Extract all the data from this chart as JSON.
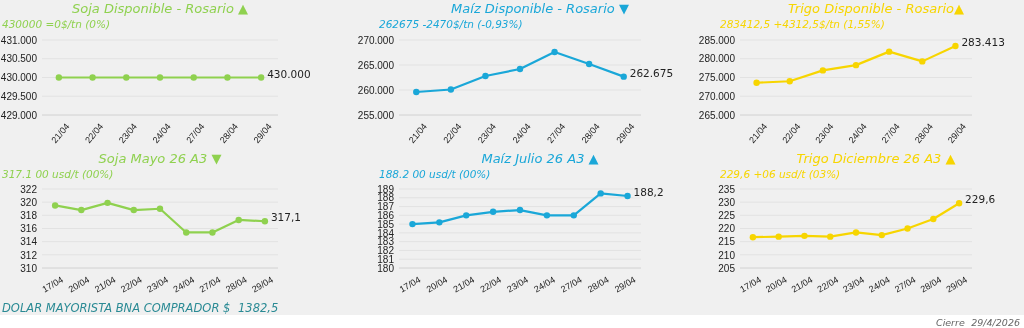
{
  "chart_data": [
    {
      "type": "line",
      "title": "Soja Disponible - Rosario ▲",
      "subtitle": "430000 =0$/tn (0%)",
      "categories": [
        "21/04",
        "22/04",
        "23/04",
        "24/04",
        "27/04",
        "28/04",
        "29/04"
      ],
      "series": [
        {
          "color": "#8fd14f",
          "values": [
            430000,
            430000,
            430000,
            430000,
            430000,
            430000,
            430000
          ],
          "value_labels": [
            null,
            null,
            null,
            null,
            null,
            null,
            "430.000"
          ]
        }
      ],
      "ylim": [
        429000,
        431000
      ],
      "yticks": [
        {
          "value": 429000,
          "label": "429.000"
        },
        {
          "value": 429500,
          "label": "429.500"
        },
        {
          "value": 430000,
          "label": "430.000"
        },
        {
          "value": 430500,
          "label": "430.500"
        },
        {
          "value": 431000,
          "label": "431.000"
        }
      ],
      "grid": "y",
      "marker": "circle"
    },
    {
      "type": "line",
      "title": "Maíz Disponible - Rosario ▼",
      "subtitle": "262675 -2470$/tn (-0,93%)",
      "categories": [
        "21/04",
        "22/04",
        "23/04",
        "24/04",
        "27/04",
        "28/04",
        "29/04"
      ],
      "series": [
        {
          "color": "#1aa7d8",
          "values": [
            259600,
            260100,
            262800,
            264200,
            267600,
            265200,
            262675
          ],
          "value_labels": [
            null,
            null,
            null,
            null,
            null,
            null,
            "262.675"
          ]
        }
      ],
      "ylim": [
        255000,
        270000
      ],
      "yticks": [
        {
          "value": 255000,
          "label": "255.000"
        },
        {
          "value": 260000,
          "label": "260.000"
        },
        {
          "value": 265000,
          "label": "265.000"
        },
        {
          "value": 270000,
          "label": "270.000"
        }
      ],
      "grid": "y",
      "marker": "circle"
    },
    {
      "type": "line",
      "title": "Trigo Disponible - Rosario▲",
      "subtitle": "283412,5 +4312,5$/tn (1,55%)",
      "categories": [
        "21/04",
        "22/04",
        "23/04",
        "24/04",
        "27/04",
        "28/04",
        "29/04"
      ],
      "series": [
        {
          "color": "#f7d500",
          "values": [
            273600,
            274000,
            276900,
            278300,
            281900,
            279300,
            283412.5
          ],
          "value_labels": [
            null,
            null,
            null,
            null,
            null,
            null,
            "283.413"
          ]
        }
      ],
      "ylim": [
        265000,
        285000
      ],
      "yticks": [
        {
          "value": 265000,
          "label": "265.000"
        },
        {
          "value": 270000,
          "label": "270.000"
        },
        {
          "value": 275000,
          "label": "275.000"
        },
        {
          "value": 280000,
          "label": "280.000"
        },
        {
          "value": 285000,
          "label": "285.000"
        }
      ],
      "grid": "y",
      "marker": "circle"
    },
    {
      "type": "line",
      "title": "Soja Mayo 26 A3 ▼",
      "subtitle": "317.1 00 usd/t (00%)",
      "categories": [
        "17/04",
        "20/04",
        "21/04",
        "22/04",
        "23/04",
        "24/04",
        "27/04",
        "28/04",
        "29/04"
      ],
      "series": [
        {
          "color": "#8fd14f",
          "values": [
            319.5,
            318.8,
            319.9,
            318.8,
            319.0,
            315.4,
            315.4,
            317.3,
            317.1
          ],
          "value_labels": [
            null,
            null,
            null,
            null,
            null,
            null,
            null,
            null,
            "317,1"
          ]
        }
      ],
      "ylim": [
        310,
        322
      ],
      "yticks": [
        310,
        312,
        314,
        316,
        318,
        320,
        322
      ],
      "grid": "y",
      "marker": "circle",
      "annotations": [
        "DOLAR MAYORISTA BNA COMPRADOR $",
        "1382,5"
      ]
    },
    {
      "type": "line",
      "title": "Maíz Julio 26 A3 ▲",
      "subtitle": "188.2 00 usd/t (00%)",
      "categories": [
        "17/04",
        "20/04",
        "21/04",
        "22/04",
        "23/04",
        "24/04",
        "27/04",
        "28/04",
        "29/04"
      ],
      "series": [
        {
          "color": "#1aa7d8",
          "values": [
            185.0,
            185.2,
            186.0,
            186.4,
            186.6,
            186.0,
            186.0,
            188.5,
            188.2
          ],
          "value_labels": [
            null,
            null,
            null,
            null,
            null,
            null,
            null,
            null,
            "188,2"
          ]
        }
      ],
      "ylim": [
        180,
        189
      ],
      "yticks": [
        180,
        181,
        182,
        183,
        184,
        185,
        186,
        187,
        188,
        189
      ],
      "grid": "y",
      "marker": "circle"
    },
    {
      "type": "line",
      "title": "Trigo Diciembre 26 A3 ▲",
      "subtitle": "229,6 +06 usd/t (03%)",
      "categories": [
        "17/04",
        "20/04",
        "21/04",
        "22/04",
        "23/04",
        "24/04",
        "27/04",
        "28/04",
        "29/04"
      ],
      "series": [
        {
          "color": "#f7d500",
          "values": [
            216.7,
            216.9,
            217.2,
            216.9,
            218.5,
            217.5,
            220.0,
            223.6,
            229.6
          ],
          "value_labels": [
            null,
            null,
            null,
            null,
            null,
            null,
            null,
            null,
            "229,6"
          ]
        }
      ],
      "ylim": [
        205,
        235
      ],
      "yticks": [
        205,
        210,
        215,
        220,
        225,
        230,
        235
      ],
      "grid": "y",
      "marker": "circle",
      "annotations": [
        "Cierre",
        "29/4/2026"
      ]
    }
  ]
}
